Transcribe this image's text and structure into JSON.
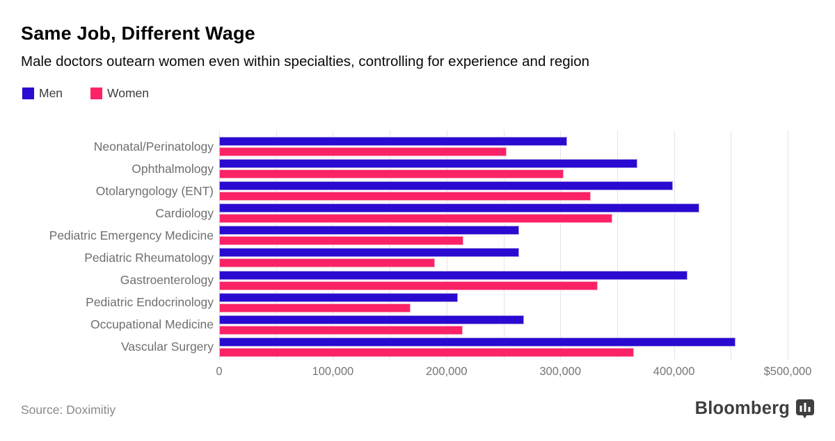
{
  "header": {
    "title": "Same Job, Different Wage",
    "subtitle": "Male doctors outearn women even within specialties, controlling for experience and region"
  },
  "legend": {
    "items": [
      {
        "label": "Men",
        "color": "#2a0ad0"
      },
      {
        "label": "Women",
        "color": "#fb2366"
      }
    ]
  },
  "footer": {
    "source": "Source: Doximitiy",
    "brand": "Bloomberg",
    "brand_icon": "bar-chart-badge"
  },
  "colors": {
    "men": "#2a0ad0",
    "men_border": "#a89ae2",
    "women": "#fb2366",
    "women_border": "#f6a9c6",
    "gridline": "#e4e3e9",
    "category_label": "#6f6f6f",
    "tick_label": "#757575",
    "source_text": "#8a8a8a",
    "brand_text": "#3f3f3f"
  },
  "chart_data": {
    "type": "bar",
    "orientation": "horizontal",
    "title": "Same Job, Different Wage",
    "xlabel": "",
    "ylabel": "",
    "categories": [
      "Neonatal/Perinatology",
      "Ophthalmology",
      "Otolaryngology (ENT)",
      "Cardiology",
      "Pediatric Emergency Medicine",
      "Pediatric Rheumatology",
      "Gastroenterology",
      "Pediatric Endocrinology",
      "Occupational Medicine",
      "Vascular Surgery"
    ],
    "series": [
      {
        "name": "Men",
        "color": "#2a0ad0",
        "values": [
          306000,
          368000,
          399000,
          422000,
          264000,
          264000,
          412000,
          210000,
          268000,
          454000
        ]
      },
      {
        "name": "Women",
        "color": "#fb2366",
        "values": [
          253000,
          303000,
          327000,
          346000,
          215000,
          190000,
          333000,
          168000,
          214000,
          365000
        ]
      }
    ],
    "xlim": [
      0,
      500000
    ],
    "gridline_step": 50000,
    "grid": "vertical-only",
    "legend_position": "top-left",
    "xticks": [
      {
        "value": 0,
        "label": "0"
      },
      {
        "value": 100000,
        "label": "100,000"
      },
      {
        "value": 200000,
        "label": "200,000"
      },
      {
        "value": 300000,
        "label": "300,000"
      },
      {
        "value": 400000,
        "label": "400,000"
      },
      {
        "value": 500000,
        "label": "$500,000"
      }
    ]
  }
}
